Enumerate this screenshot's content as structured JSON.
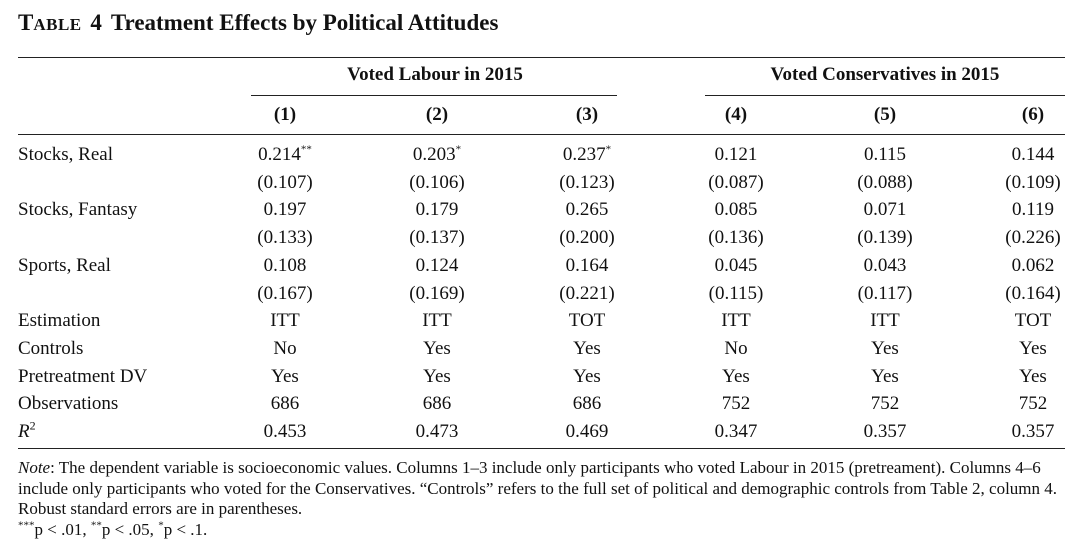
{
  "table": {
    "title_prefix_initial": "T",
    "title_prefix_rest": "ABLE",
    "title_number": "4",
    "title_text": "Treatment Effects by Political Attitudes",
    "groups": [
      "Voted Labour in 2015",
      "Voted Conservatives in 2015"
    ],
    "columns": [
      "(1)",
      "(2)",
      "(3)",
      "(4)",
      "(5)",
      "(6)"
    ],
    "rows": [
      {
        "label": "Stocks, Real",
        "values": [
          "0.214",
          "0.203",
          "0.237",
          "0.121",
          "0.115",
          "0.144"
        ],
        "stars": [
          "**",
          "*",
          "*",
          "",
          "",
          ""
        ],
        "se": [
          "(0.107)",
          "(0.106)",
          "(0.123)",
          "(0.087)",
          "(0.088)",
          "(0.109)"
        ]
      },
      {
        "label": "Stocks, Fantasy",
        "values": [
          "0.197",
          "0.179",
          "0.265",
          "0.085",
          "0.071",
          "0.119"
        ],
        "stars": [
          "",
          "",
          "",
          "",
          "",
          ""
        ],
        "se": [
          "(0.133)",
          "(0.137)",
          "(0.200)",
          "(0.136)",
          "(0.139)",
          "(0.226)"
        ]
      },
      {
        "label": "Sports, Real",
        "values": [
          "0.108",
          "0.124",
          "0.164",
          "0.045",
          "0.043",
          "0.062"
        ],
        "stars": [
          "",
          "",
          "",
          "",
          "",
          ""
        ],
        "se": [
          "(0.167)",
          "(0.169)",
          "(0.221)",
          "(0.115)",
          "(0.117)",
          "(0.164)"
        ]
      },
      {
        "label": "Estimation",
        "values": [
          "ITT",
          "ITT",
          "TOT",
          "ITT",
          "ITT",
          "TOT"
        ]
      },
      {
        "label": "Controls",
        "values": [
          "No",
          "Yes",
          "Yes",
          "No",
          "Yes",
          "Yes"
        ]
      },
      {
        "label": "Pretreatment DV",
        "values": [
          "Yes",
          "Yes",
          "Yes",
          "Yes",
          "Yes",
          "Yes"
        ]
      },
      {
        "label": "Observations",
        "values": [
          "686",
          "686",
          "686",
          "752",
          "752",
          "752"
        ]
      },
      {
        "label_base": "R",
        "label_sup": "2",
        "values": [
          "0.453",
          "0.473",
          "0.469",
          "0.347",
          "0.357",
          "0.357"
        ]
      }
    ],
    "note_label": "Note",
    "note_text": ": The dependent variable is socioeconomic values. Columns 1–3 include only participants who voted Labour in 2015 (pretreament). Columns 4–6 include only participants who voted for the Conservatives. “Controls” refers to the full set of political and demographic controls from Table 2, column 4. Robust standard errors are in parentheses.",
    "sig_legend": [
      {
        "stars": "***",
        "text": "p < .01, "
      },
      {
        "stars": "**",
        "text": "p < .05, "
      },
      {
        "stars": "*",
        "text": "p < .1."
      }
    ]
  }
}
